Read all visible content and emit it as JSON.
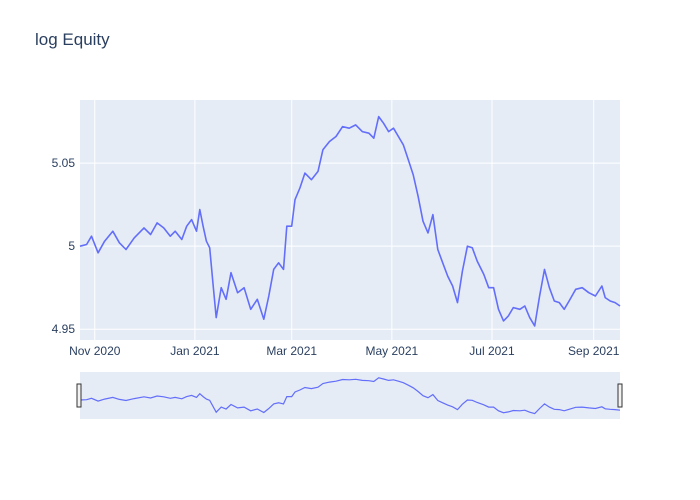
{
  "chart_data": {
    "type": "line",
    "title": "log Equity",
    "xlabel": "",
    "ylabel": "",
    "x_range": [
      "2020-10-23",
      "2021-09-17"
    ],
    "ylim": [
      4.9435,
      5.088
    ],
    "x_ticks": [
      {
        "date": "2020-11-01",
        "label": "Nov 2020"
      },
      {
        "date": "2021-01-01",
        "label": "Jan 2021"
      },
      {
        "date": "2021-03-01",
        "label": "Mar 2021"
      },
      {
        "date": "2021-05-01",
        "label": "May 2021"
      },
      {
        "date": "2021-07-01",
        "label": "Jul 2021"
      },
      {
        "date": "2021-09-01",
        "label": "Sep 2021"
      }
    ],
    "y_ticks": [
      {
        "value": 4.95,
        "label": "4.95"
      },
      {
        "value": 5.0,
        "label": "5"
      },
      {
        "value": 5.05,
        "label": "5.05"
      }
    ],
    "grid": true,
    "legend": "none",
    "line_color": "#636efa",
    "range_slider": true,
    "series": [
      {
        "points": [
          [
            "2020-10-23",
            5.0
          ],
          [
            "2020-10-27",
            5.001
          ],
          [
            "2020-10-30",
            5.006
          ],
          [
            "2020-11-03",
            4.996
          ],
          [
            "2020-11-07",
            5.003
          ],
          [
            "2020-11-12",
            5.009
          ],
          [
            "2020-11-16",
            5.002
          ],
          [
            "2020-11-20",
            4.998
          ],
          [
            "2020-11-25",
            5.005
          ],
          [
            "2020-12-01",
            5.011
          ],
          [
            "2020-12-05",
            5.007
          ],
          [
            "2020-12-09",
            5.014
          ],
          [
            "2020-12-13",
            5.011
          ],
          [
            "2020-12-17",
            5.006
          ],
          [
            "2020-12-20",
            5.009
          ],
          [
            "2020-12-24",
            5.004
          ],
          [
            "2020-12-27",
            5.012
          ],
          [
            "2020-12-30",
            5.016
          ],
          [
            "2021-01-02",
            5.009
          ],
          [
            "2021-01-04",
            5.022
          ],
          [
            "2021-01-06",
            5.012
          ],
          [
            "2021-01-08",
            5.003
          ],
          [
            "2021-01-10",
            4.999
          ],
          [
            "2021-01-12",
            4.978
          ],
          [
            "2021-01-14",
            4.957
          ],
          [
            "2021-01-17",
            4.975
          ],
          [
            "2021-01-20",
            4.968
          ],
          [
            "2021-01-23",
            4.984
          ],
          [
            "2021-01-27",
            4.972
          ],
          [
            "2021-01-31",
            4.975
          ],
          [
            "2021-02-04",
            4.962
          ],
          [
            "2021-02-08",
            4.968
          ],
          [
            "2021-02-12",
            4.956
          ],
          [
            "2021-02-15",
            4.97
          ],
          [
            "2021-02-18",
            4.986
          ],
          [
            "2021-02-21",
            4.99
          ],
          [
            "2021-02-24",
            4.986
          ],
          [
            "2021-02-26",
            5.012
          ],
          [
            "2021-03-01",
            5.012
          ],
          [
            "2021-03-03",
            5.028
          ],
          [
            "2021-03-06",
            5.035
          ],
          [
            "2021-03-09",
            5.044
          ],
          [
            "2021-03-13",
            5.04
          ],
          [
            "2021-03-17",
            5.045
          ],
          [
            "2021-03-20",
            5.058
          ],
          [
            "2021-03-24",
            5.063
          ],
          [
            "2021-03-28",
            5.066
          ],
          [
            "2021-04-01",
            5.072
          ],
          [
            "2021-04-05",
            5.071
          ],
          [
            "2021-04-09",
            5.073
          ],
          [
            "2021-04-13",
            5.069
          ],
          [
            "2021-04-17",
            5.068
          ],
          [
            "2021-04-20",
            5.065
          ],
          [
            "2021-04-23",
            5.078
          ],
          [
            "2021-04-26",
            5.074
          ],
          [
            "2021-04-29",
            5.069
          ],
          [
            "2021-05-02",
            5.071
          ],
          [
            "2021-05-05",
            5.066
          ],
          [
            "2021-05-08",
            5.061
          ],
          [
            "2021-05-11",
            5.052
          ],
          [
            "2021-05-14",
            5.043
          ],
          [
            "2021-05-17",
            5.03
          ],
          [
            "2021-05-20",
            5.015
          ],
          [
            "2021-05-23",
            5.008
          ],
          [
            "2021-05-26",
            5.019
          ],
          [
            "2021-05-29",
            4.998
          ],
          [
            "2021-06-01",
            4.99
          ],
          [
            "2021-06-04",
            4.982
          ],
          [
            "2021-06-07",
            4.976
          ],
          [
            "2021-06-10",
            4.966
          ],
          [
            "2021-06-13",
            4.985
          ],
          [
            "2021-06-16",
            5.0
          ],
          [
            "2021-06-19",
            4.999
          ],
          [
            "2021-06-22",
            4.991
          ],
          [
            "2021-06-26",
            4.983
          ],
          [
            "2021-06-29",
            4.975
          ],
          [
            "2021-07-02",
            4.975
          ],
          [
            "2021-07-05",
            4.962
          ],
          [
            "2021-07-08",
            4.955
          ],
          [
            "2021-07-11",
            4.958
          ],
          [
            "2021-07-14",
            4.963
          ],
          [
            "2021-07-18",
            4.962
          ],
          [
            "2021-07-21",
            4.964
          ],
          [
            "2021-07-24",
            4.957
          ],
          [
            "2021-07-27",
            4.952
          ],
          [
            "2021-07-30",
            4.97
          ],
          [
            "2021-08-02",
            4.986
          ],
          [
            "2021-08-05",
            4.975
          ],
          [
            "2021-08-08",
            4.967
          ],
          [
            "2021-08-11",
            4.966
          ],
          [
            "2021-08-14",
            4.962
          ],
          [
            "2021-08-17",
            4.967
          ],
          [
            "2021-08-21",
            4.974
          ],
          [
            "2021-08-25",
            4.975
          ],
          [
            "2021-08-29",
            4.972
          ],
          [
            "2021-09-02",
            4.97
          ],
          [
            "2021-09-06",
            4.976
          ],
          [
            "2021-09-08",
            4.969
          ],
          [
            "2021-09-11",
            4.967
          ],
          [
            "2021-09-14",
            4.966
          ],
          [
            "2021-09-17",
            4.964
          ]
        ]
      }
    ]
  }
}
